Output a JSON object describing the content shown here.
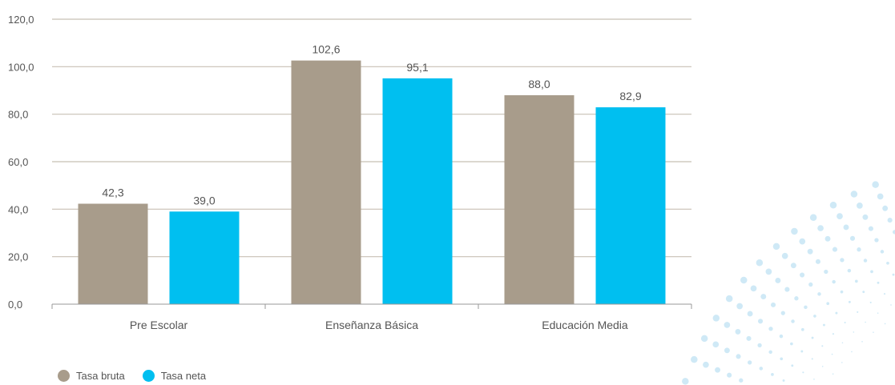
{
  "chart_data": {
    "type": "bar",
    "categories": [
      "Pre Escolar",
      "Enseñanza Básica",
      "Educación Media"
    ],
    "series": [
      {
        "name": "Tasa bruta",
        "values": [
          42.3,
          102.6,
          88.0
        ],
        "labels": [
          "42,3",
          "102,6",
          "88,0"
        ],
        "color": "#a89c8b"
      },
      {
        "name": "Tasa neta",
        "values": [
          39.0,
          95.1,
          82.9
        ],
        "labels": [
          "39,0",
          "95,1",
          "82,9"
        ],
        "color": "#00bff0"
      }
    ],
    "ylim": [
      0,
      120
    ],
    "yticks": [
      0,
      20,
      40,
      60,
      80,
      100,
      120
    ],
    "ytick_labels": [
      "0,0",
      "20,0",
      "40,0",
      "60,0",
      "80,0",
      "100,0",
      "120,0"
    ],
    "grid": true,
    "legend_position": "bottom-left",
    "title": "",
    "xlabel": "",
    "ylabel": ""
  },
  "colors": {
    "grid": "#c8c0b4",
    "axis": "#999999",
    "decoration": "#cfe9f6"
  }
}
